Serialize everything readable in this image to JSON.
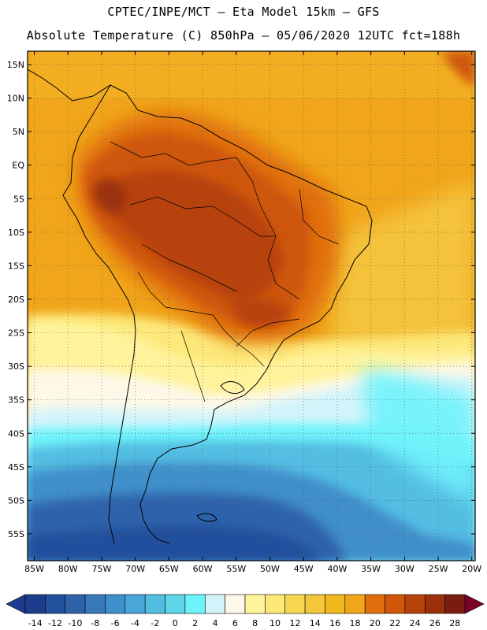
{
  "header": {
    "line1": "CPTEC/INPE/MCT  –   Eta Model 15km  –  GFS",
    "line2": "Absolute Temperature (C) 850hPa  –  05/06/2020 12UTC fct=188h"
  },
  "map": {
    "lat_labels": [
      "15N",
      "10N",
      "5N",
      "EQ",
      "5S",
      "10S",
      "15S",
      "20S",
      "25S",
      "30S",
      "35S",
      "40S",
      "45S",
      "50S",
      "55S"
    ],
    "lat_values": [
      15,
      10,
      5,
      0,
      -5,
      -10,
      -15,
      -20,
      -25,
      -30,
      -35,
      -40,
      -45,
      -50,
      -55
    ],
    "lon_labels": [
      "85W",
      "80W",
      "75W",
      "70W",
      "65W",
      "60W",
      "55W",
      "50W",
      "45W",
      "40W",
      "35W",
      "30W",
      "25W",
      "20W"
    ],
    "lon_values": [
      -85,
      -80,
      -75,
      -70,
      -65,
      -60,
      -55,
      -50,
      -45,
      -40,
      -35,
      -30,
      -25,
      -20
    ],
    "extent": {
      "lon_min": -86,
      "lon_max": -19.5,
      "lat_min": -59,
      "lat_max": 17
    }
  },
  "colorbar": {
    "labels": [
      "-14",
      "-12",
      "-10",
      "-8",
      "-6",
      "-4",
      "-2",
      "0",
      "2",
      "4",
      "6",
      "8",
      "10",
      "12",
      "14",
      "16",
      "18",
      "20",
      "22",
      "24",
      "26",
      "28"
    ],
    "colors": [
      "#1c3d8c",
      "#23509d",
      "#2e63ab",
      "#3a78bc",
      "#3f8fca",
      "#48a7d8",
      "#52bde2",
      "#5fd6ea",
      "#6ff3fb",
      "#d3f4fb",
      "#fdf8e8",
      "#fff39c",
      "#fde879",
      "#f9d650",
      "#f3c73b",
      "#f1b81e",
      "#f0a51a",
      "#e06e0c",
      "#cf560a",
      "#b8430a",
      "#9b300c",
      "#7a1d10"
    ],
    "under_color": "#1f3a8f",
    "over_color": "#7d0028"
  }
}
